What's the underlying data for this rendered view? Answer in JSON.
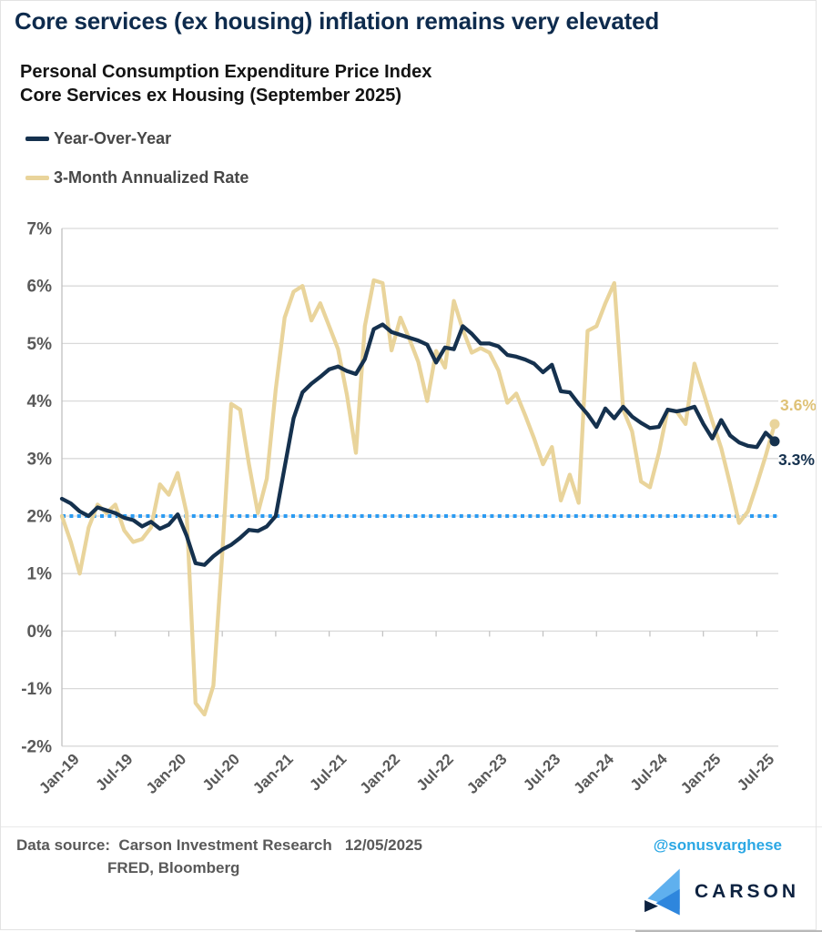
{
  "header": {
    "title": "Core services (ex housing) inflation remains very elevated",
    "subtitle_line1": "Personal Consumption Expenditure Price Index",
    "subtitle_line2": "Core Services ex Housing (September 2025)"
  },
  "legend": {
    "items": [
      {
        "label": "Year-Over-Year",
        "color": "#15314e"
      },
      {
        "label": "3-Month Annualized Rate",
        "color": "#e9d49b"
      }
    ]
  },
  "chart_data": {
    "type": "line",
    "x_start": "Jan-2019",
    "x_end": "Sep-2025",
    "frequency": "monthly",
    "grid": true,
    "ylim": [
      -2,
      7
    ],
    "x_tick_labels": [
      "Jan-19",
      "Jul-19",
      "Jan-20",
      "Jul-20",
      "Jan-21",
      "Jul-21",
      "Jan-22",
      "Jul-22",
      "Jan-23",
      "Jul-23",
      "Jan-24",
      "Jul-24",
      "Jan-25",
      "Jul-25"
    ],
    "y_ticks": [
      {
        "label": "7%",
        "value": 7
      },
      {
        "label": "6%",
        "value": 6
      },
      {
        "label": "5%",
        "value": 5
      },
      {
        "label": "4%",
        "value": 4
      },
      {
        "label": "3%",
        "value": 3
      },
      {
        "label": "2%",
        "value": 2
      },
      {
        "label": "1%",
        "value": 1
      },
      {
        "label": "0%",
        "value": 0
      },
      {
        "label": "-1%",
        "value": -1
      },
      {
        "label": "-2%",
        "value": -2
      }
    ],
    "reference_line": {
      "value": 2,
      "style": "dotted",
      "color": "#2b9bf2"
    },
    "series": [
      {
        "name": "Year-Over-Year",
        "slug": "year-over-year-line",
        "color": "#15314e",
        "end_label": "3.3%",
        "end_label_color": "#15314e",
        "end_value": 3.3,
        "values": [
          2.3,
          2.22,
          2.08,
          2.0,
          2.15,
          2.1,
          2.05,
          1.97,
          1.93,
          1.82,
          1.9,
          1.78,
          1.85,
          2.03,
          1.66,
          1.18,
          1.15,
          1.3,
          1.42,
          1.5,
          1.62,
          1.76,
          1.74,
          1.82,
          2.0,
          2.85,
          3.7,
          4.15,
          4.3,
          4.42,
          4.55,
          4.6,
          4.52,
          4.47,
          4.73,
          5.25,
          5.33,
          5.2,
          5.15,
          5.1,
          5.05,
          4.98,
          4.67,
          4.93,
          4.9,
          5.3,
          5.17,
          5.0,
          5.0,
          4.95,
          4.8,
          4.77,
          4.72,
          4.65,
          4.5,
          4.63,
          4.17,
          4.15,
          3.95,
          3.77,
          3.55,
          3.87,
          3.7,
          3.9,
          3.73,
          3.62,
          3.53,
          3.55,
          3.85,
          3.82,
          3.85,
          3.9,
          3.6,
          3.35,
          3.67,
          3.4,
          3.28,
          3.22,
          3.2,
          3.45,
          3.3
        ]
      },
      {
        "name": "3-Month Annualized Rate",
        "slug": "three-month-annualized-line",
        "color": "#e9d49b",
        "end_label": "3.6%",
        "end_label_color": "#dfc277",
        "end_value": 3.6,
        "values": [
          2.0,
          1.55,
          1.0,
          1.8,
          2.2,
          2.05,
          2.2,
          1.75,
          1.55,
          1.6,
          1.8,
          2.55,
          2.37,
          2.75,
          2.05,
          -1.25,
          -1.45,
          -0.95,
          1.35,
          3.95,
          3.85,
          2.9,
          2.05,
          2.65,
          4.2,
          5.45,
          5.9,
          6.0,
          5.4,
          5.7,
          5.3,
          4.9,
          4.1,
          3.1,
          5.3,
          6.1,
          6.05,
          4.88,
          5.45,
          5.08,
          4.68,
          4.0,
          4.87,
          4.58,
          5.74,
          5.24,
          4.84,
          4.92,
          4.84,
          4.53,
          3.97,
          4.13,
          3.75,
          3.35,
          2.9,
          3.2,
          2.27,
          2.72,
          2.23,
          5.22,
          5.3,
          5.7,
          6.05,
          3.85,
          3.47,
          2.6,
          2.5,
          3.1,
          3.85,
          3.82,
          3.6,
          4.65,
          4.15,
          3.65,
          3.18,
          2.55,
          1.88,
          2.08,
          2.55,
          3.05,
          3.6
        ]
      }
    ]
  },
  "footer": {
    "source_line1": "Data source:  Carson Investment Research   12/05/2025",
    "source_line2": "FRED, Bloomberg",
    "handle": "@sonusvarghese",
    "logo_text": "CARSON"
  },
  "colors": {
    "grid": "#d9d9d9",
    "axis": "#bfbfbf",
    "title": "#0e2b4d",
    "handle": "#2ba7e4",
    "logo_light_blue": "#5fb0ee",
    "logo_mid_blue": "#2e86dd",
    "logo_navy": "#0d2240"
  }
}
